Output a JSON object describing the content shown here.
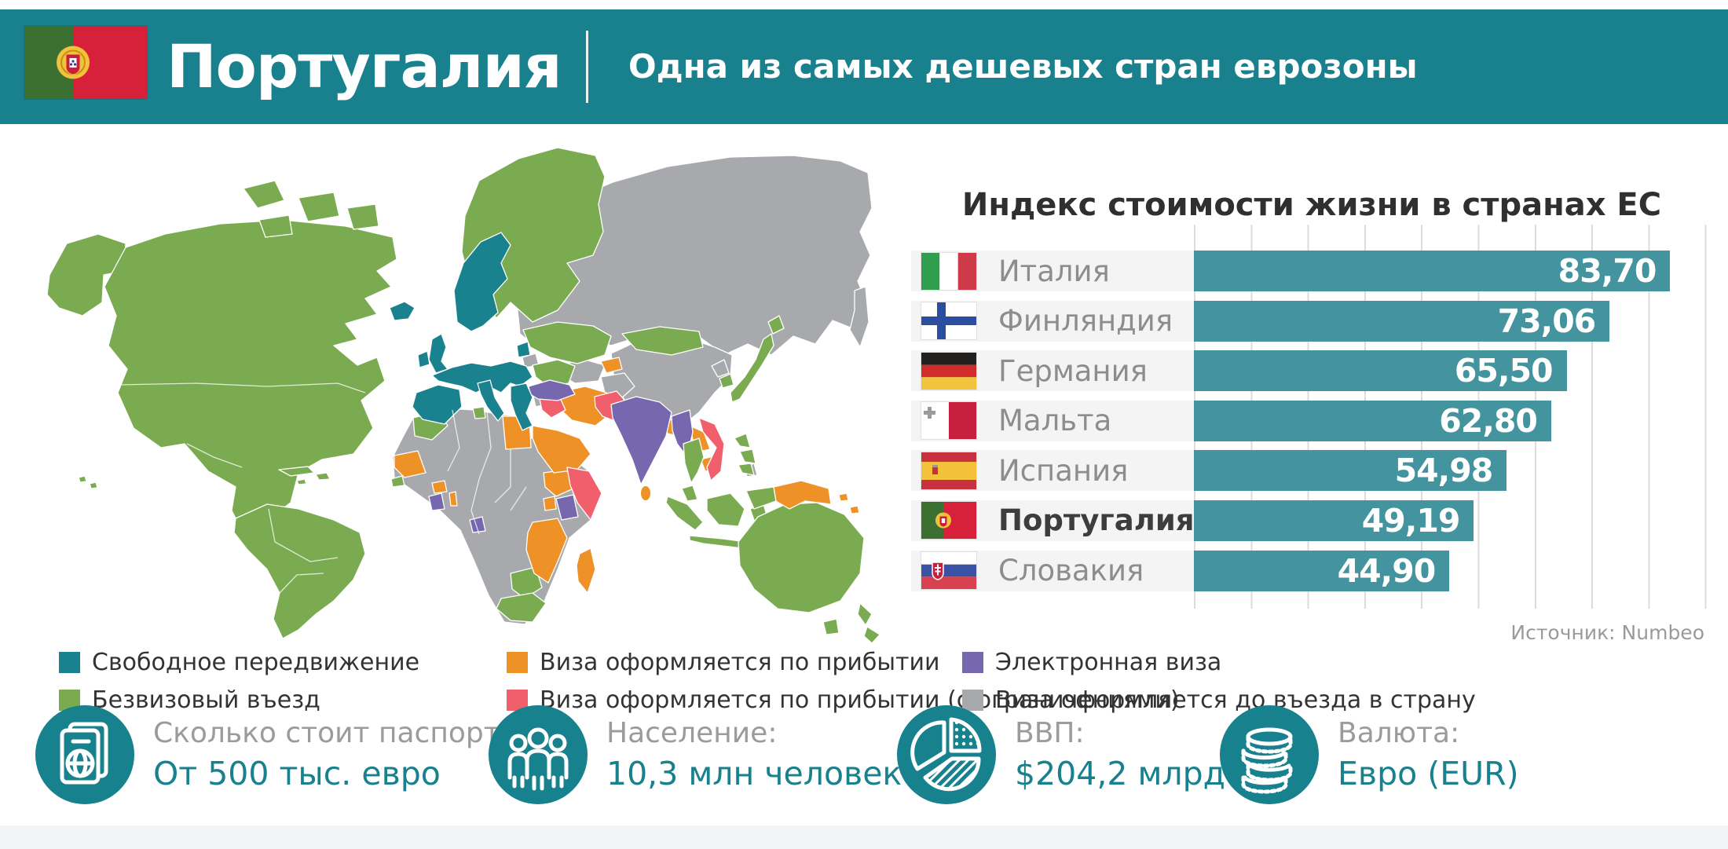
{
  "palette": {
    "header_teal": "#19818d",
    "stat_teal": "#17818d",
    "bar_teal": "#43949e",
    "free_teal": "#1a828e",
    "visa_free_green": "#7bab51",
    "arrival_orange": "#ee9227",
    "arrival_limited_pink": "#f25f6c",
    "evisa_purple": "#7767ae",
    "visa_required_gray": "#a7a9ac"
  },
  "header": {
    "flag": "portugal-flag",
    "title": "Португалия",
    "subtitle": "Одна из самых дешевых стран еврозоны"
  },
  "chart_data": {
    "type": "bar",
    "orientation": "horizontal",
    "title": "Индекс стоимости жизни в странах ЕС",
    "categories": [
      "Италия",
      "Финляндия",
      "Германия",
      "Мальта",
      "Испания",
      "Португалия",
      "Словакия"
    ],
    "values": [
      83.7,
      73.06,
      65.5,
      62.8,
      54.98,
      49.19,
      44.9
    ],
    "value_labels": [
      "83,70",
      "73,06",
      "65,50",
      "62,80",
      "54,98",
      "49,19",
      "44,90"
    ],
    "flags": [
      "italy",
      "finland",
      "germany",
      "malta",
      "spain",
      "portugal",
      "slovakia"
    ],
    "highlight_category": "Португалия",
    "xlim": [
      0,
      90
    ],
    "gridlines": true,
    "legend_position": "none",
    "source": "Источник: Numbeo"
  },
  "map_legend": [
    {
      "label": "Свободное передвижение",
      "color_key": "free_teal"
    },
    {
      "label": "Безвизовый въезд",
      "color_key": "visa_free_green"
    },
    {
      "label": "Виза оформляется по прибытии",
      "color_key": "arrival_orange"
    },
    {
      "label": "Виза оформляется по прибытии (с ограничениями)",
      "color_key": "arrival_limited_pink"
    },
    {
      "label": "Электронная виза",
      "color_key": "evisa_purple"
    },
    {
      "label": "Виза оформляется до въезда в страну",
      "color_key": "visa_required_gray"
    }
  ],
  "stats": [
    {
      "icon": "passport-icon",
      "label": "Сколько стоит паспорт:",
      "value": "От 500 тыс. евро"
    },
    {
      "icon": "population-icon",
      "label": "Население:",
      "value": "10,3 млн человек"
    },
    {
      "icon": "gdp-icon",
      "label": "ВВП:",
      "value": "$204,2 млрд"
    },
    {
      "icon": "currency-icon",
      "label": "Валюта:",
      "value": "Евро (EUR)"
    }
  ]
}
